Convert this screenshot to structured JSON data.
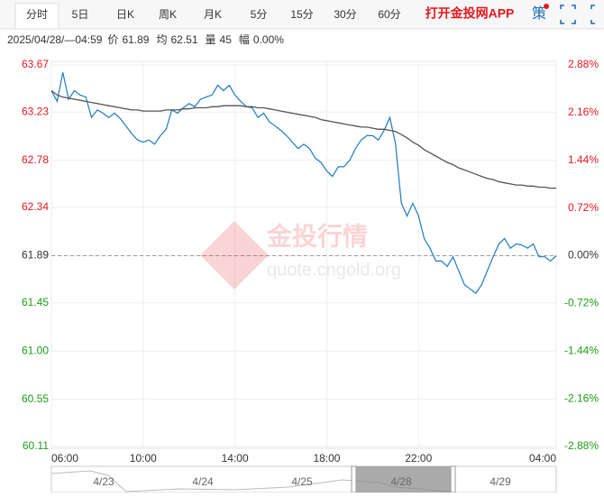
{
  "tabs": [
    "分时",
    "5日",
    "日K",
    "周K",
    "月K",
    "5分",
    "15分",
    "30分",
    "60分"
  ],
  "app_link": "打开金投网APP",
  "strategy": "策",
  "info": {
    "time": "2025/04/28/—04:59",
    "items": [
      {
        "label": "价",
        "value": "61.89"
      },
      {
        "label": "均",
        "value": "62.51"
      },
      {
        "label": "量",
        "value": "45"
      },
      {
        "label": "幅",
        "value": "0.00%"
      }
    ]
  },
  "watermark": {
    "brand": "金投行情",
    "url": "quote.cngold.org"
  },
  "navigator": {
    "dates": [
      "4/23",
      "4/24",
      "4/25",
      "4/28",
      "4/29"
    ]
  },
  "chart_data": {
    "type": "line",
    "x": [
      6,
      6.25,
      6.5,
      6.75,
      7,
      7.25,
      7.5,
      7.75,
      8,
      8.25,
      8.5,
      8.75,
      9,
      9.25,
      9.5,
      9.75,
      10,
      10.25,
      10.5,
      10.75,
      11,
      11.25,
      11.5,
      11.75,
      12,
      12.25,
      12.5,
      12.75,
      13,
      13.25,
      13.5,
      13.75,
      14,
      14.25,
      14.5,
      14.75,
      15,
      15.25,
      15.5,
      15.75,
      16,
      16.25,
      16.5,
      16.75,
      17,
      17.25,
      17.5,
      17.75,
      18,
      18.25,
      18.5,
      18.75,
      19,
      19.25,
      19.5,
      19.75,
      20,
      20.25,
      20.5,
      20.75,
      21,
      21.25,
      21.5,
      21.75,
      22,
      22.25,
      22.5,
      22.75,
      23,
      23.25,
      23.5,
      23.75,
      24,
      24.25,
      24.5,
      24.75,
      25,
      25.25,
      25.5,
      25.75,
      26,
      26.25,
      26.5,
      26.75,
      27,
      27.25,
      27.5,
      27.75,
      28
    ],
    "series": [
      {
        "name": "价",
        "color": "#1f7bc1",
        "values": [
          63.43,
          63.33,
          63.6,
          63.35,
          63.43,
          63.39,
          63.37,
          63.18,
          63.25,
          63.22,
          63.18,
          63.22,
          63.17,
          63.1,
          63.03,
          62.97,
          62.95,
          62.97,
          62.93,
          63.01,
          63.07,
          63.25,
          63.22,
          63.27,
          63.31,
          63.28,
          63.35,
          63.37,
          63.39,
          63.48,
          63.43,
          63.48,
          63.39,
          63.33,
          63.28,
          63.27,
          63.18,
          63.22,
          63.14,
          63.1,
          63.06,
          63.01,
          62.95,
          62.89,
          62.93,
          62.89,
          62.8,
          62.76,
          62.68,
          62.63,
          62.72,
          62.72,
          62.78,
          62.89,
          62.97,
          63.01,
          63.01,
          62.97,
          63.06,
          63.18,
          62.93,
          62.38,
          62.26,
          62.38,
          62.26,
          62.05,
          61.96,
          61.84,
          61.84,
          61.79,
          61.88,
          61.75,
          61.62,
          61.58,
          61.54,
          61.62,
          61.75,
          61.88,
          62.0,
          62.05,
          61.96,
          62.0,
          61.99,
          61.96,
          62.0,
          61.88,
          61.88,
          61.84,
          61.89
        ]
      },
      {
        "name": "均",
        "color": "#555555",
        "values": [
          63.43,
          63.39,
          63.37,
          63.36,
          63.35,
          63.34,
          63.33,
          63.32,
          63.31,
          63.3,
          63.29,
          63.28,
          63.27,
          63.26,
          63.25,
          63.25,
          63.24,
          63.24,
          63.24,
          63.24,
          63.25,
          63.25,
          63.25,
          63.26,
          63.26,
          63.27,
          63.27,
          63.27,
          63.28,
          63.28,
          63.29,
          63.29,
          63.29,
          63.29,
          63.28,
          63.28,
          63.27,
          63.27,
          63.26,
          63.25,
          63.24,
          63.23,
          63.22,
          63.21,
          63.2,
          63.19,
          63.18,
          63.16,
          63.15,
          63.14,
          63.13,
          63.12,
          63.11,
          63.1,
          63.09,
          63.09,
          63.08,
          63.07,
          63.07,
          63.06,
          63.05,
          63.02,
          62.99,
          62.95,
          62.92,
          62.88,
          62.85,
          62.82,
          62.79,
          62.76,
          62.74,
          62.71,
          62.69,
          62.67,
          62.65,
          62.63,
          62.61,
          62.6,
          62.58,
          62.57,
          62.56,
          62.55,
          62.55,
          62.54,
          62.54,
          62.53,
          62.53,
          62.52,
          62.52
        ]
      }
    ],
    "xlim": [
      6,
      28
    ],
    "xticks": [
      {
        "value": 6,
        "label": "06:00"
      },
      {
        "value": 10,
        "label": "10:00"
      },
      {
        "value": 14,
        "label": "14:00"
      },
      {
        "value": 18,
        "label": "18:00"
      },
      {
        "value": 22,
        "label": "22:00"
      },
      {
        "value": 28,
        "label": "04:00"
      }
    ],
    "ylim": [
      60.11,
      63.67
    ],
    "yticks": [
      63.67,
      63.23,
      62.78,
      62.34,
      61.89,
      61.45,
      {
        "value": 61,
        "label": "61.00"
      },
      60.55,
      60.11
    ],
    "y2lim": [
      -2.88,
      2.88
    ],
    "y2ticks": [
      {
        "value": 2.88,
        "label": "2.88%"
      },
      {
        "value": 2.16,
        "label": "2.16%"
      },
      {
        "value": 1.44,
        "label": "1.44%"
      },
      {
        "value": 0.72,
        "label": "0.72%"
      },
      {
        "value": 0,
        "label": "0.00%"
      },
      {
        "value": -0.72,
        "label": "-0.72%"
      },
      {
        "value": -1.44,
        "label": "-1.44%"
      },
      {
        "value": -2.16,
        "label": "-2.16%"
      },
      {
        "value": -2.88,
        "label": "-2.88%"
      }
    ],
    "baseline": 61.89,
    "grid": true
  }
}
